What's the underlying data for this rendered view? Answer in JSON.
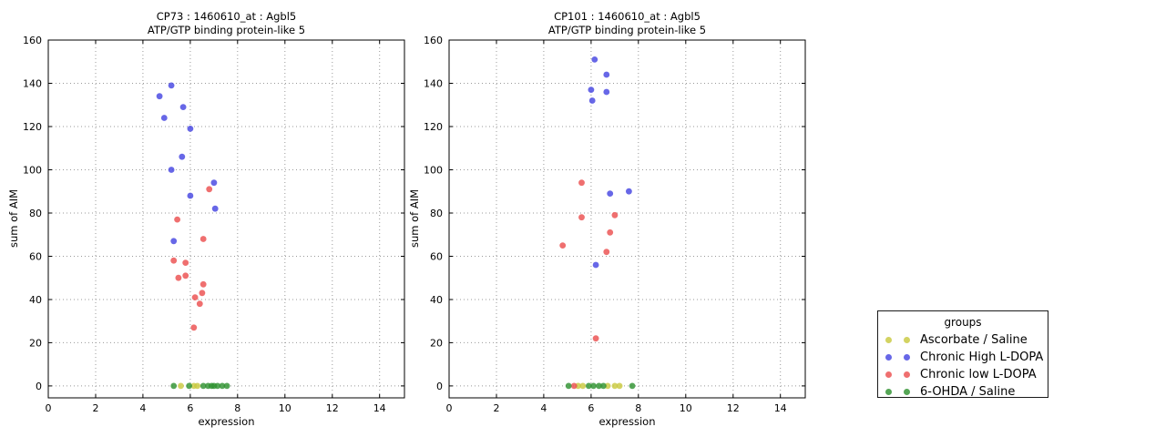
{
  "chart_data": [
    {
      "type": "scatter",
      "title": "CP73 : 1460610_at : Agbl5",
      "subtitle": "ATP/GTP binding protein-like 5",
      "xlabel": "expression",
      "ylabel": "sum of AIM",
      "xlim": [
        0,
        15.05
      ],
      "ylim": [
        -5.5,
        160
      ],
      "xticks": [
        0,
        2,
        4,
        6,
        8,
        10,
        12,
        14
      ],
      "yticks": [
        0,
        20,
        40,
        60,
        80,
        100,
        120,
        140,
        160
      ],
      "grid": "dotted",
      "series": [
        {
          "name": "Ascorbate / Saline",
          "color": "#c9c93f",
          "points": [
            [
              5.6,
              0
            ],
            [
              6.15,
              0
            ],
            [
              6.3,
              0
            ]
          ]
        },
        {
          "name": "Chronic High L-DOPA",
          "color": "#4646e2",
          "points": [
            [
              5.2,
              139
            ],
            [
              4.7,
              134
            ],
            [
              5.7,
              129
            ],
            [
              4.9,
              124
            ],
            [
              6.0,
              119
            ],
            [
              5.65,
              106
            ],
            [
              5.2,
              100
            ],
            [
              7.0,
              94
            ],
            [
              6.0,
              88
            ],
            [
              7.05,
              82
            ],
            [
              5.3,
              67
            ]
          ]
        },
        {
          "name": "Chronic low L-DOPA",
          "color": "#ec4f4f",
          "points": [
            [
              6.8,
              91
            ],
            [
              5.45,
              77
            ],
            [
              6.55,
              68
            ],
            [
              5.3,
              58
            ],
            [
              5.8,
              57
            ],
            [
              5.5,
              50
            ],
            [
              5.8,
              51
            ],
            [
              6.55,
              47
            ],
            [
              6.5,
              43
            ],
            [
              6.2,
              41
            ],
            [
              6.4,
              38
            ],
            [
              6.15,
              27
            ]
          ]
        },
        {
          "name": "6-OHDA / Saline",
          "color": "#2f9331",
          "points": [
            [
              5.3,
              0
            ],
            [
              5.95,
              0
            ],
            [
              6.55,
              0
            ],
            [
              6.75,
              0
            ],
            [
              6.9,
              0
            ],
            [
              7.0,
              0
            ],
            [
              7.15,
              0
            ],
            [
              7.35,
              0
            ],
            [
              7.55,
              0
            ]
          ]
        }
      ]
    },
    {
      "type": "scatter",
      "title": "CP101 : 1460610_at : Agbl5",
      "subtitle": "ATP/GTP binding protein-like 5",
      "xlabel": "expression",
      "ylabel": "sum of AIM",
      "xlim": [
        0,
        15.05
      ],
      "ylim": [
        -5.5,
        160
      ],
      "xticks": [
        0,
        2,
        4,
        6,
        8,
        10,
        12,
        14
      ],
      "yticks": [
        0,
        20,
        40,
        60,
        80,
        100,
        120,
        140,
        160
      ],
      "grid": "dotted",
      "series": [
        {
          "name": "Ascorbate / Saline",
          "color": "#c9c93f",
          "points": [
            [
              5.45,
              0
            ],
            [
              5.65,
              0
            ],
            [
              6.7,
              0
            ],
            [
              7.0,
              0
            ],
            [
              7.2,
              0
            ]
          ]
        },
        {
          "name": "Chronic High L-DOPA",
          "color": "#4646e2",
          "points": [
            [
              6.15,
              151
            ],
            [
              6.65,
              144
            ],
            [
              6.0,
              137
            ],
            [
              6.65,
              136
            ],
            [
              6.05,
              132
            ],
            [
              7.6,
              90
            ],
            [
              6.8,
              89
            ],
            [
              6.2,
              56
            ]
          ]
        },
        {
          "name": "Chronic low L-DOPA",
          "color": "#ec4f4f",
          "points": [
            [
              5.6,
              94
            ],
            [
              5.6,
              78
            ],
            [
              7.0,
              79
            ],
            [
              6.8,
              71
            ],
            [
              4.8,
              65
            ],
            [
              6.65,
              62
            ],
            [
              6.2,
              22
            ],
            [
              5.28,
              0
            ]
          ]
        },
        {
          "name": "6-OHDA / Saline",
          "color": "#2f9331",
          "points": [
            [
              5.05,
              0
            ],
            [
              5.9,
              0
            ],
            [
              6.1,
              0
            ],
            [
              6.33,
              0
            ],
            [
              6.52,
              0
            ],
            [
              7.74,
              0
            ]
          ]
        }
      ]
    }
  ],
  "legend": {
    "title": "groups",
    "position": "right",
    "entries": [
      {
        "label": "Ascorbate / Saline",
        "color": "#c9c93f"
      },
      {
        "label": "Chronic High L-DOPA",
        "color": "#4646e2"
      },
      {
        "label": "Chronic low L-DOPA",
        "color": "#ec4f4f"
      },
      {
        "label": "6-OHDA / Saline",
        "color": "#2f9331"
      }
    ]
  }
}
